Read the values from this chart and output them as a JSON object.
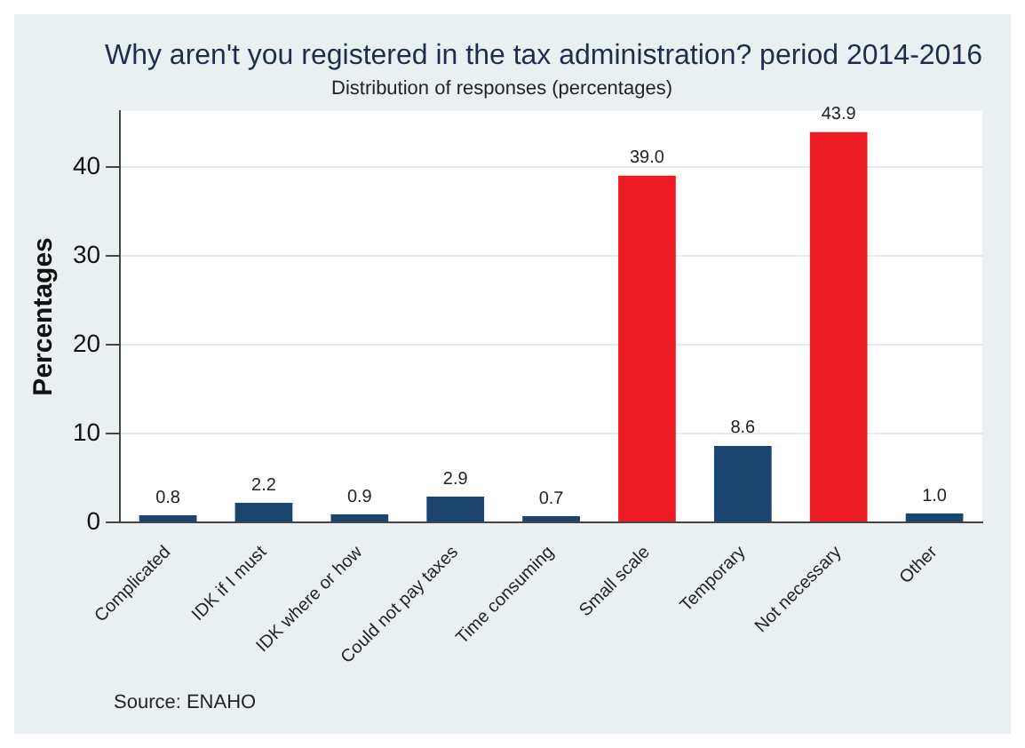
{
  "chart_data": {
    "type": "bar",
    "title": "Why aren't you registered in the tax administration? period 2014-2016",
    "subtitle": "Distribution of responses (percentages)",
    "ylabel": "Percentages",
    "categories": [
      "Complicated",
      "IDK if I must",
      "IDK where or how",
      "Could not pay taxes",
      "Time consuming",
      "Small scale",
      "Temporary",
      "Not necessary",
      "Other"
    ],
    "values": [
      0.8,
      2.2,
      0.9,
      2.9,
      0.7,
      39.0,
      8.6,
      43.9,
      1.0
    ],
    "colors": [
      "#1a4570",
      "#1a4570",
      "#1a4570",
      "#1a4570",
      "#1a4570",
      "#ed1c24",
      "#1a4570",
      "#ed1c24",
      "#1a4570"
    ],
    "value_labels": [
      "0.8",
      "2.2",
      "0.9",
      "2.9",
      "0.7",
      "39.0",
      "8.6",
      "43.9",
      "1.0"
    ],
    "ylim": [
      0,
      46.3
    ],
    "yticks": [
      0,
      10,
      20,
      30,
      40
    ],
    "grid": "y",
    "legend": false,
    "annotations": [
      "Source: ENAHO"
    ]
  }
}
